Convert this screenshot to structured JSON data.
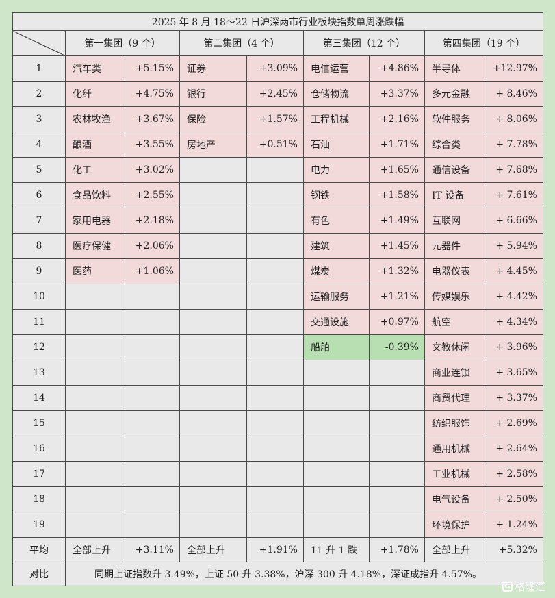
{
  "title": "2025 年 8 月 18～22 日沪深两市行业板块指数单周涨跌幅",
  "groups": [
    {
      "label": "第一集团（9 个）"
    },
    {
      "label": "第二集团（4 个）"
    },
    {
      "label": "第三集团（12 个）"
    },
    {
      "label": "第四集团（19 个）"
    }
  ],
  "rows": [
    {
      "index": "1",
      "cells": [
        {
          "name": "汽车类",
          "value": "+5.15%"
        },
        {
          "name": "证券",
          "value": "+3.09%"
        },
        {
          "name": "电信运营",
          "value": "+4.86%"
        },
        {
          "name": "半导体",
          "value": "+12.97%"
        }
      ]
    },
    {
      "index": "2",
      "cells": [
        {
          "name": "化纤",
          "value": "+4.75%"
        },
        {
          "name": "银行",
          "value": "+2.45%"
        },
        {
          "name": "仓储物流",
          "value": "+3.37%"
        },
        {
          "name": "多元金融",
          "value": "+ 8.46%"
        }
      ]
    },
    {
      "index": "3",
      "cells": [
        {
          "name": "农林牧渔",
          "value": "+3.67%"
        },
        {
          "name": "保险",
          "value": "+1.57%"
        },
        {
          "name": "工程机械",
          "value": "+2.16%"
        },
        {
          "name": "软件服务",
          "value": "+ 8.06%"
        }
      ]
    },
    {
      "index": "4",
      "cells": [
        {
          "name": "酿酒",
          "value": "+3.55%"
        },
        {
          "name": "房地产",
          "value": "+0.51%"
        },
        {
          "name": "石油",
          "value": "+1.71%"
        },
        {
          "name": "综合类",
          "value": "+ 7.78%"
        }
      ]
    },
    {
      "index": "5",
      "cells": [
        {
          "name": "化工",
          "value": "+3.02%"
        },
        null,
        {
          "name": "电力",
          "value": "+1.65%"
        },
        {
          "name": "通信设备",
          "value": "+ 7.68%"
        }
      ]
    },
    {
      "index": "6",
      "cells": [
        {
          "name": "食品饮料",
          "value": "+2.55%"
        },
        null,
        {
          "name": "钢铁",
          "value": "+1.58%"
        },
        {
          "name": "IT 设备",
          "value": "+ 7.61%"
        }
      ]
    },
    {
      "index": "7",
      "cells": [
        {
          "name": "家用电器",
          "value": "+2.18%"
        },
        null,
        {
          "name": "有色",
          "value": "+1.49%"
        },
        {
          "name": "互联网",
          "value": "+ 6.66%"
        }
      ]
    },
    {
      "index": "8",
      "cells": [
        {
          "name": "医疗保健",
          "value": "+2.06%"
        },
        null,
        {
          "name": "建筑",
          "value": "+1.45%"
        },
        {
          "name": "元器件",
          "value": "+ 5.94%"
        }
      ]
    },
    {
      "index": "9",
      "cells": [
        {
          "name": "医药",
          "value": "+1.06%"
        },
        null,
        {
          "name": "煤炭",
          "value": "+1.32%"
        },
        {
          "name": "电器仪表",
          "value": "+ 4.45%"
        }
      ]
    },
    {
      "index": "10",
      "cells": [
        null,
        null,
        {
          "name": "运输服务",
          "value": "+1.21%"
        },
        {
          "name": "传媒娱乐",
          "value": "+ 4.42%"
        }
      ]
    },
    {
      "index": "11",
      "cells": [
        null,
        null,
        {
          "name": "交通设施",
          "value": "+0.97%"
        },
        {
          "name": "航空",
          "value": "+ 4.34%"
        }
      ]
    },
    {
      "index": "12",
      "cells": [
        null,
        null,
        {
          "name": "船舶",
          "value": "-0.39%",
          "negative": true
        },
        {
          "name": "文教休闲",
          "value": "+ 3.96%"
        }
      ]
    },
    {
      "index": "13",
      "cells": [
        null,
        null,
        null,
        {
          "name": "商业连锁",
          "value": "+ 3.65%"
        }
      ]
    },
    {
      "index": "14",
      "cells": [
        null,
        null,
        null,
        {
          "name": "商贸代理",
          "value": "+ 3.37%"
        }
      ]
    },
    {
      "index": "15",
      "cells": [
        null,
        null,
        null,
        {
          "name": "纺织服饰",
          "value": "+ 2.69%"
        }
      ]
    },
    {
      "index": "16",
      "cells": [
        null,
        null,
        null,
        {
          "name": "通用机械",
          "value": "+ 2.64%"
        }
      ]
    },
    {
      "index": "17",
      "cells": [
        null,
        null,
        null,
        {
          "name": "工业机械",
          "value": "+ 2.58%"
        }
      ]
    },
    {
      "index": "18",
      "cells": [
        null,
        null,
        null,
        {
          "name": "电气设备",
          "value": "+ 2.50%"
        }
      ]
    },
    {
      "index": "19",
      "cells": [
        null,
        null,
        null,
        {
          "name": "环境保护",
          "value": "+ 1.24%"
        }
      ]
    }
  ],
  "average": {
    "label": "平均",
    "cells": [
      {
        "name": "全部上升",
        "value": "+3.11%"
      },
      {
        "name": "全部上升",
        "value": "+1.91%"
      },
      {
        "name": "11 升 1 跌",
        "value": "+1.78%"
      },
      {
        "name": "全部上升",
        "value": "+5.32%"
      }
    ]
  },
  "comparison": {
    "label": "对比",
    "text": "同期上证指数升 3.49%，上证 50 升 3.38%，沪深 300 升 4.18%，深证成指升 4.57%。"
  },
  "watermark": "格隆汇",
  "colors": {
    "page_bg": "#cfe6c9",
    "table_bg": "#e9e9e9",
    "rise_cell": "#f2dada",
    "fall_cell": "#b7dfb2"
  }
}
